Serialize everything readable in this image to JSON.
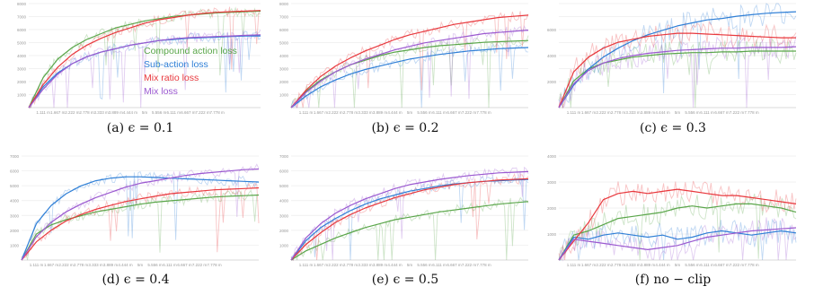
{
  "figure": {
    "legend_series": [
      {
        "name": "Compound action loss",
        "color": "#5aa64a"
      },
      {
        "name": "Sub-action loss",
        "color": "#2f7fd6"
      },
      {
        "name": "Mix ratio loss",
        "color": "#e8383d"
      },
      {
        "name": "Mix loss",
        "color": "#9b59d0"
      }
    ]
  },
  "chart_data": [
    {
      "type": "line",
      "caption": "(a) ϵ = 0.1",
      "x": [
        0,
        1,
        2,
        3,
        4,
        5,
        6,
        7,
        8,
        9,
        10,
        11,
        12,
        13,
        14,
        15,
        16
      ],
      "x_tick_labels": [
        "",
        "1.111 m",
        "1.667 m",
        "2.222 m",
        "2.778 m",
        "3.333 m",
        "3.889 m",
        "4.444 m",
        "5m",
        "5.556 m",
        "6.111 m",
        "6.667 m",
        "7.222 m",
        "7.778 m",
        "",
        "",
        ""
      ],
      "y_tick_labels": [
        "",
        "1000",
        "2000",
        "3000",
        "4000",
        "5000",
        "6000",
        "7000",
        "8000"
      ],
      "ylim": [
        0,
        9000
      ],
      "series": [
        {
          "name": "Compound action loss",
          "color": "#5aa64a",
          "values": [
            0,
            2600,
            4200,
            5200,
            5900,
            6400,
            6900,
            7200,
            7500,
            7700,
            7900,
            8000,
            8100,
            8200,
            8250,
            8300,
            8350
          ]
        },
        {
          "name": "Sub-action loss",
          "color": "#2f7fd6",
          "values": [
            0,
            1800,
            3000,
            3800,
            4400,
            4800,
            5100,
            5400,
            5600,
            5800,
            5900,
            6000,
            6050,
            6100,
            6150,
            6200,
            6200
          ]
        },
        {
          "name": "Mix ratio loss",
          "color": "#e8383d",
          "values": [
            0,
            2000,
            3500,
            4600,
            5400,
            6000,
            6500,
            6900,
            7300,
            7600,
            7800,
            8000,
            8150,
            8250,
            8300,
            8350,
            8400
          ]
        },
        {
          "name": "Mix loss",
          "color": "#9b59d0",
          "values": [
            0,
            1600,
            2900,
            3800,
            4400,
            4800,
            5100,
            5400,
            5600,
            5800,
            5950,
            6050,
            6100,
            6150,
            6200,
            6250,
            6300
          ]
        }
      ]
    },
    {
      "type": "line",
      "caption": "(b) ϵ = 0.2",
      "x": [
        0,
        1,
        2,
        3,
        4,
        5,
        6,
        7,
        8,
        9,
        10,
        11,
        12,
        13,
        14,
        15,
        16
      ],
      "x_tick_labels": [
        "",
        "1.111 m",
        "1.667 m",
        "2.222 m",
        "2.778 m",
        "3.333 m",
        "3.889 m",
        "4.444 m",
        "5m",
        "5.556 m",
        "6.111 m",
        "6.667 m",
        "7.222 m",
        "7.778 m",
        "",
        "",
        ""
      ],
      "y_tick_labels": [
        "",
        "1000",
        "2000",
        "3000",
        "4000",
        "5000",
        "6000",
        "7000",
        "8000"
      ],
      "ylim": [
        0,
        9000
      ],
      "series": [
        {
          "name": "Compound action loss",
          "color": "#5aa64a",
          "values": [
            0,
            1400,
            2400,
            3100,
            3700,
            4100,
            4500,
            4800,
            5000,
            5200,
            5350,
            5450,
            5550,
            5650,
            5700,
            5750,
            5800
          ]
        },
        {
          "name": "Sub-action loss",
          "color": "#2f7fd6",
          "values": [
            0,
            1000,
            1800,
            2400,
            2900,
            3300,
            3600,
            3900,
            4200,
            4400,
            4600,
            4750,
            4900,
            5000,
            5100,
            5150,
            5200
          ]
        },
        {
          "name": "Mix ratio loss",
          "color": "#e8383d",
          "values": [
            0,
            1500,
            2700,
            3600,
            4300,
            4900,
            5400,
            5900,
            6300,
            6600,
            6900,
            7200,
            7400,
            7600,
            7800,
            7900,
            8000
          ]
        },
        {
          "name": "Mix loss",
          "color": "#9b59d0",
          "values": [
            0,
            1300,
            2300,
            3100,
            3700,
            4200,
            4600,
            5000,
            5300,
            5600,
            5800,
            6000,
            6200,
            6400,
            6500,
            6600,
            6700
          ]
        }
      ]
    },
    {
      "type": "line",
      "caption": "(c) ϵ = 0.3",
      "x": [
        0,
        1,
        2,
        3,
        4,
        5,
        6,
        7,
        8,
        9,
        10,
        11,
        12,
        13,
        14,
        15,
        16
      ],
      "x_tick_labels": [
        "",
        "1.111 m",
        "1.667 m",
        "2.222 m",
        "2.778 m",
        "3.333 m",
        "3.889 m",
        "4.444 m",
        "5m",
        "5.556 m",
        "6.111 m",
        "6.667 m",
        "7.222 m",
        "7.778 m",
        "",
        "",
        ""
      ],
      "y_tick_labels": [
        "",
        "",
        "2000",
        "",
        "4000",
        "",
        "6000",
        "",
        ""
      ],
      "ylim": [
        0,
        7000
      ],
      "series": [
        {
          "name": "Compound action loss",
          "color": "#5aa64a",
          "values": [
            0,
            1800,
            2600,
            3000,
            3200,
            3400,
            3500,
            3600,
            3650,
            3700,
            3700,
            3750,
            3750,
            3800,
            3800,
            3800,
            3800
          ]
        },
        {
          "name": "Sub-action loss",
          "color": "#2f7fd6",
          "values": [
            0,
            1500,
            2600,
            3400,
            4000,
            4500,
            4900,
            5200,
            5500,
            5700,
            5900,
            6000,
            6150,
            6250,
            6350,
            6400,
            6450
          ]
        },
        {
          "name": "Mix ratio loss",
          "color": "#e8383d",
          "values": [
            0,
            2400,
            3400,
            4000,
            4400,
            4600,
            4800,
            4900,
            5000,
            5000,
            4950,
            4900,
            4850,
            4800,
            4750,
            4700,
            4700
          ]
        },
        {
          "name": "Mix loss",
          "color": "#9b59d0",
          "values": [
            0,
            1600,
            2500,
            3000,
            3300,
            3500,
            3650,
            3750,
            3850,
            3900,
            3950,
            4000,
            4000,
            4050,
            4050,
            4050,
            4100
          ]
        }
      ]
    },
    {
      "type": "line",
      "caption": "(d) ϵ = 0.4",
      "x": [
        0,
        1,
        2,
        3,
        4,
        5,
        6,
        7,
        8,
        9,
        10,
        11,
        12,
        13,
        14,
        15,
        16
      ],
      "x_tick_labels": [
        "",
        "1.111 m",
        "1.667 m",
        "2.222 m",
        "2.778 m",
        "3.333 m",
        "3.889 m",
        "4.444 m",
        "5m",
        "5.556 m",
        "6.111 m",
        "6.667 m",
        "7.222 m",
        "7.778 m",
        "",
        "",
        ""
      ],
      "y_tick_labels": [
        "",
        "1000",
        "2000",
        "3000",
        "4000",
        "5000",
        "6000",
        "7000"
      ],
      "ylim": [
        0,
        8000
      ],
      "series": [
        {
          "name": "Compound action loss",
          "color": "#5aa64a",
          "values": [
            0,
            2000,
            2700,
            3100,
            3400,
            3700,
            3900,
            4100,
            4300,
            4450,
            4550,
            4650,
            4750,
            4850,
            4900,
            4950,
            5000
          ]
        },
        {
          "name": "Sub-action loss",
          "color": "#2f7fd6",
          "values": [
            0,
            2800,
            4200,
            5100,
            5700,
            6100,
            6300,
            6400,
            6400,
            6350,
            6300,
            6250,
            6200,
            6150,
            6100,
            6050,
            6000
          ]
        },
        {
          "name": "Mix ratio loss",
          "color": "#e8383d",
          "values": [
            0,
            1400,
            2300,
            3000,
            3500,
            3900,
            4200,
            4500,
            4700,
            4900,
            5100,
            5200,
            5300,
            5400,
            5450,
            5500,
            5550
          ]
        },
        {
          "name": "Mix loss",
          "color": "#9b59d0",
          "values": [
            0,
            1800,
            2900,
            3700,
            4300,
            4800,
            5200,
            5600,
            5900,
            6100,
            6300,
            6500,
            6650,
            6750,
            6850,
            6950,
            7000
          ]
        }
      ]
    },
    {
      "type": "line",
      "caption": "(e) ϵ = 0.5",
      "x": [
        0,
        1,
        2,
        3,
        4,
        5,
        6,
        7,
        8,
        9,
        10,
        11,
        12,
        13,
        14,
        15,
        16
      ],
      "x_tick_labels": [
        "",
        "1.111 m",
        "1.667 m",
        "2.222 m",
        "2.778 m",
        "3.333 m",
        "3.889 m",
        "4.444 m",
        "5m",
        "5.556 m",
        "6.111 m",
        "6.667 m",
        "7.222 m",
        "7.778 m",
        "",
        "",
        ""
      ],
      "y_tick_labels": [
        "",
        "1000",
        "2000",
        "3000",
        "4000",
        "5000",
        "6000",
        "7000"
      ],
      "ylim": [
        0,
        8000
      ],
      "series": [
        {
          "name": "Compound action loss",
          "color": "#5aa64a",
          "values": [
            0,
            700,
            1200,
            1700,
            2100,
            2500,
            2800,
            3100,
            3300,
            3500,
            3700,
            3850,
            4000,
            4150,
            4300,
            4400,
            4500
          ]
        },
        {
          "name": "Sub-action loss",
          "color": "#2f7fd6",
          "values": [
            0,
            1500,
            2500,
            3200,
            3800,
            4300,
            4700,
            5000,
            5300,
            5500,
            5700,
            5850,
            5950,
            6050,
            6100,
            6150,
            6200
          ]
        },
        {
          "name": "Mix ratio loss",
          "color": "#e8383d",
          "values": [
            0,
            1200,
            2100,
            2900,
            3500,
            4000,
            4400,
            4800,
            5100,
            5400,
            5600,
            5800,
            5950,
            6050,
            6150,
            6200,
            6250
          ]
        },
        {
          "name": "Mix loss",
          "color": "#9b59d0",
          "values": [
            0,
            1700,
            2800,
            3600,
            4200,
            4700,
            5100,
            5500,
            5800,
            6000,
            6200,
            6350,
            6500,
            6600,
            6700,
            6750,
            6800
          ]
        }
      ]
    },
    {
      "type": "line",
      "caption": "(f) no − clip",
      "x": [
        0,
        1,
        2,
        3,
        4,
        5,
        6,
        7,
        8,
        9,
        10,
        11,
        12,
        13,
        14,
        15,
        16
      ],
      "x_tick_labels": [
        "",
        "1.111 m",
        "1.667 m",
        "2.222 m",
        "2.778 m",
        "3.333 m",
        "3.889 m",
        "4.444 m",
        "5m",
        "5.556 m",
        "6.111 m",
        "6.667 m",
        "7.222 m",
        "7.778 m",
        "",
        "",
        ""
      ],
      "y_tick_labels": [
        "",
        "1000",
        "2000",
        "3000",
        "4000"
      ],
      "ylim": [
        0,
        5000
      ],
      "series": [
        {
          "name": "Compound action loss",
          "color": "#5aa64a",
          "values": [
            0,
            1200,
            1400,
            1700,
            2000,
            2100,
            2200,
            2300,
            2500,
            2600,
            2500,
            2600,
            2700,
            2700,
            2600,
            2500,
            2300
          ]
        },
        {
          "name": "Sub-action loss",
          "color": "#2f7fd6",
          "values": [
            0,
            1100,
            1000,
            1200,
            1300,
            1200,
            1100,
            1200,
            1000,
            1100,
            1300,
            1400,
            1300,
            1200,
            1300,
            1400,
            1300
          ]
        },
        {
          "name": "Mix ratio loss",
          "color": "#e8383d",
          "values": [
            0,
            900,
            1800,
            2900,
            3200,
            3300,
            3200,
            3300,
            3400,
            3300,
            3200,
            3100,
            3100,
            3000,
            2900,
            2800,
            2700
          ]
        },
        {
          "name": "Mix loss",
          "color": "#9b59d0",
          "values": [
            0,
            1000,
            900,
            800,
            700,
            600,
            500,
            600,
            700,
            900,
            1100,
            1200,
            1300,
            1400,
            1450,
            1500,
            1550
          ]
        }
      ]
    }
  ]
}
